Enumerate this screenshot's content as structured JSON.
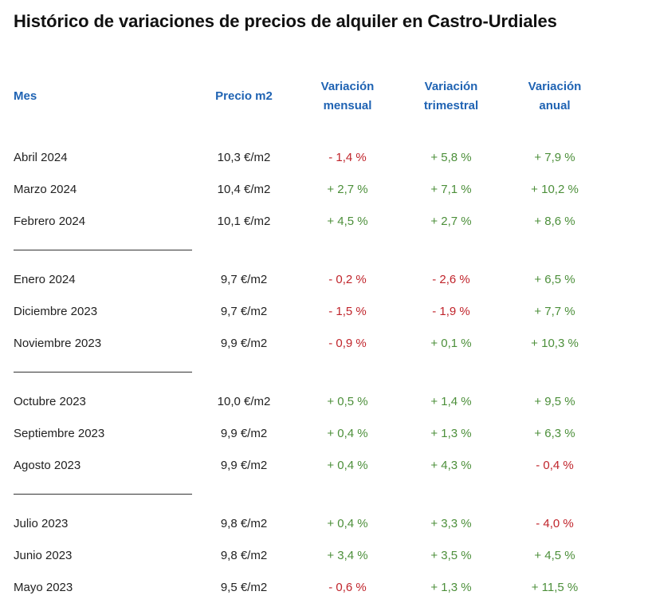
{
  "title": "Histórico de variaciones de precios de alquiler en Castro-Urdiales",
  "headers": {
    "month": "Mes",
    "price": "Precio m2",
    "monthly": [
      "Variación",
      "mensual"
    ],
    "quarterly": [
      "Variación",
      "trimestral"
    ],
    "annual": [
      "Variación",
      "anual"
    ]
  },
  "colors": {
    "header": "#1f63b3",
    "positive": "#4c8f3a",
    "negative": "#c0242b"
  },
  "rows": [
    {
      "month": "Abril 2024",
      "price": "10,3 €/m2",
      "monthly": "- 1,4 %",
      "quarterly": "+ 5,8 %",
      "annual": "+ 7,9 %"
    },
    {
      "month": "Marzo 2024",
      "price": "10,4 €/m2",
      "monthly": "+ 2,7 %",
      "quarterly": "+ 7,1 %",
      "annual": "+ 10,2 %"
    },
    {
      "month": "Febrero 2024",
      "price": "10,1 €/m2",
      "monthly": "+ 4,5 %",
      "quarterly": "+ 2,7 %",
      "annual": "+ 8,6 %"
    },
    {
      "month": "Enero 2024",
      "price": "9,7 €/m2",
      "monthly": "- 0,2 %",
      "quarterly": "- 2,6 %",
      "annual": "+ 6,5 %"
    },
    {
      "month": "Diciembre 2023",
      "price": "9,7 €/m2",
      "monthly": "- 1,5 %",
      "quarterly": "- 1,9 %",
      "annual": "+ 7,7 %"
    },
    {
      "month": "Noviembre 2023",
      "price": "9,9 €/m2",
      "monthly": "- 0,9 %",
      "quarterly": "+ 0,1 %",
      "annual": "+ 10,3 %"
    },
    {
      "month": "Octubre 2023",
      "price": "10,0 €/m2",
      "monthly": "+ 0,5 %",
      "quarterly": "+ 1,4 %",
      "annual": "+ 9,5 %"
    },
    {
      "month": "Septiembre 2023",
      "price": "9,9 €/m2",
      "monthly": "+ 0,4 %",
      "quarterly": "+ 1,3 %",
      "annual": "+ 6,3 %"
    },
    {
      "month": "Agosto 2023",
      "price": "9,9 €/m2",
      "monthly": "+ 0,4 %",
      "quarterly": "+ 4,3 %",
      "annual": "- 0,4 %"
    },
    {
      "month": "Julio 2023",
      "price": "9,8 €/m2",
      "monthly": "+ 0,4 %",
      "quarterly": "+ 3,3 %",
      "annual": "- 4,0 %"
    },
    {
      "month": "Junio 2023",
      "price": "9,8 €/m2",
      "monthly": "+ 3,4 %",
      "quarterly": "+ 3,5 %",
      "annual": "+ 4,5 %"
    },
    {
      "month": "Mayo 2023",
      "price": "9,5 €/m2",
      "monthly": "- 0,6 %",
      "quarterly": "+ 1,3 %",
      "annual": "+ 11,5 %"
    }
  ]
}
